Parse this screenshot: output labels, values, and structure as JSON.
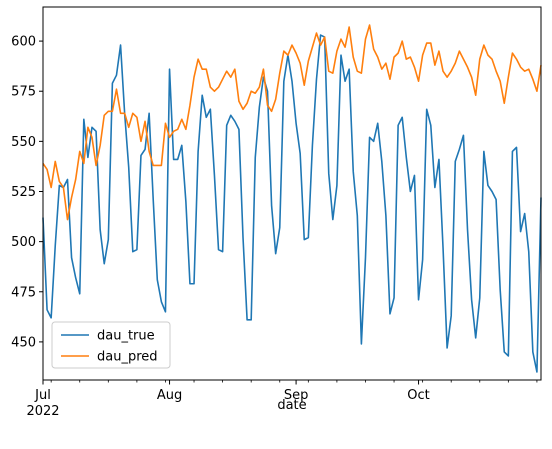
{
  "chart_data": {
    "type": "line",
    "title": "",
    "xlabel": "date",
    "ylabel": "",
    "x_start": "2022-07-01",
    "x_end": "2022-10-31",
    "xlim": [
      "2022-07-01",
      "2022-10-31"
    ],
    "ylim": [
      431,
      617
    ],
    "grid": false,
    "legend_position": "lower-left",
    "x_ticks": [
      {
        "date": "2022-07-01",
        "label": "Jul",
        "sublabel": "2022"
      },
      {
        "date": "2022-08-01",
        "label": "Aug",
        "sublabel": ""
      },
      {
        "date": "2022-09-01",
        "label": "Sep",
        "sublabel": ""
      },
      {
        "date": "2022-10-01",
        "label": "Oct",
        "sublabel": ""
      }
    ],
    "y_ticks": [
      450,
      475,
      500,
      525,
      550,
      575,
      600
    ],
    "series": [
      {
        "name": "dau_true",
        "color": "#1f77b4",
        "values": [
          512,
          466,
          462,
          498,
          528,
          527,
          531,
          492,
          482,
          474,
          561,
          542,
          557,
          555,
          506,
          489,
          501,
          579,
          583,
          598,
          564,
          537,
          495,
          496,
          543,
          546,
          564,
          521,
          481,
          470,
          465,
          586,
          541,
          541,
          548,
          520,
          479,
          479,
          545,
          573,
          562,
          566,
          533,
          496,
          495,
          558,
          563,
          560,
          556,
          502,
          461,
          461,
          542,
          567,
          582,
          575,
          518,
          494,
          507,
          580,
          593,
          580,
          559,
          544,
          501,
          502,
          548,
          581,
          603,
          602,
          534,
          511,
          528,
          593,
          580,
          586,
          535,
          513,
          449,
          492,
          552,
          550,
          559,
          540,
          513,
          464,
          472,
          558,
          562,
          542,
          525,
          533,
          471,
          491,
          566,
          558,
          527,
          541,
          497,
          447,
          463,
          540,
          546,
          553,
          506,
          471,
          452,
          472,
          545,
          528,
          525,
          521,
          476,
          445,
          443,
          545,
          547,
          505,
          514,
          495,
          445,
          435,
          522
        ]
      },
      {
        "name": "dau_pred",
        "color": "#ff7f0e",
        "values": [
          539,
          536,
          527,
          540,
          530,
          527,
          511,
          522,
          531,
          545,
          539,
          557,
          552,
          538,
          548,
          563,
          565,
          565,
          576,
          564,
          564,
          557,
          564,
          562,
          550,
          560,
          545,
          538,
          538,
          538,
          559,
          552,
          555,
          556,
          561,
          556,
          568,
          582,
          591,
          586,
          586,
          577,
          575,
          577,
          581,
          585,
          582,
          586,
          570,
          566,
          569,
          575,
          574,
          577,
          586,
          568,
          565,
          571,
          584,
          595,
          593,
          598,
          594,
          589,
          578,
          590,
          597,
          604,
          598,
          602,
          585,
          584,
          595,
          601,
          597,
          607,
          592,
          585,
          584,
          601,
          608,
          596,
          592,
          586,
          589,
          581,
          592,
          594,
          600,
          591,
          592,
          587,
          580,
          593,
          599,
          599,
          588,
          595,
          585,
          582,
          585,
          589,
          595,
          591,
          587,
          582,
          573,
          591,
          598,
          593,
          591,
          585,
          580,
          569,
          582,
          594,
          591,
          587,
          585,
          586,
          581,
          575,
          588
        ]
      }
    ]
  }
}
